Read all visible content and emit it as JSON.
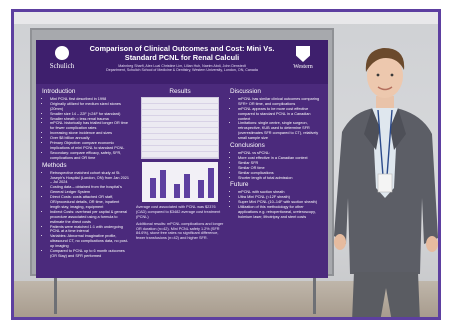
{
  "poster": {
    "title": "Comparison of Clinical Outcomes and Cost: Mini Vs. Standard PCNL for Renal Calculi",
    "authors": "Mahnbeg Sharfi, Alex Luai Christine Lim, Lilian Huh, Naeim Abdi, John Denstedt",
    "affiliation": "Department, Schulich School of Medicine & Dentistry, Western University, London, ON, Canada",
    "logo_left": "Schulich",
    "logo_right": "Western",
    "introduction": {
      "heading": "Introduction",
      "items": [
        "Mini PCNL first described in 1998",
        "Originally utilized for medium sized stones (20mm)",
        "Smaller size 14 – 22F (<24F for standard)",
        "Smaller sheath = less renal trauma",
        "mPCNL historically has trialled longer OR time for fewer complication rates",
        "Increasing stone incidence and sizes",
        "Over $8 billion annually",
        "Primary Objective: compare economic implications of mini PCNL to standard PCNL",
        "Secondary: compare efficacy, safety, SFR, complications and OR time"
      ]
    },
    "methods": {
      "heading": "Methods",
      "items": [
        "Retrospective matched cohort study at St. Joseph's Hospital (London, ON) from Jan 2021 – Jul 2024",
        "Costing data – obtained from the hospital's General Ledger System",
        "Direct Costs: costs attached OR staff, OR/procedural details, OR time, inpatient length stay, imaging, equipment",
        "Indirect Costs: overhead per capital & general procedure associated using a formula to estimate the direct costs",
        "Patients were matched 1:1 with undergoing PCNL at a time interval",
        "Variables: Abnormal imaginative profile, ultrasound CT, no complications data, no post-op imaging",
        "Compared to PCNL up to 6 month outcomes (OR Stay) and SFR performed"
      ]
    },
    "results": {
      "heading": "Results",
      "caption": "Average cost associated with PCNL was $2376 (CAD) compared to $3482 average cost treatment (PCNL)",
      "notes": "Additional results: mPCNL complications and longer OR duration (n=42). Mini PCNL safety 1.2% (SFR 84.6%), stone free rates no significant difference, fewer transfusions (n=42) and higher SFR."
    },
    "discussion": {
      "heading": "Discussion",
      "items": [
        "mPCNL has similar clinical outcomes comparing SFR+ OR time, and complications",
        "mPCNL appears to be more cost effective compared to standard PCNL in a Canadian context",
        "Limitations: single centre, single surgeon, retrospective, KUB used to determine SFR (overestimates SFR compared to CT), relatively small sample size"
      ]
    },
    "conclusions": {
      "heading": "Conclusions",
      "items": [
        "mPCNL vs sPCNL:",
        "More cost effective in a Canadian context",
        "Similar SFR",
        "Similar OR time",
        "Similar complications",
        "Shorter length of total admission"
      ]
    },
    "future": {
      "heading": "Future",
      "items": [
        "mPCNL with suction sheath",
        "Ultra Mini PCNL (<12F sheath)",
        "Super Mini PCNL (10–14F with suction sheath)",
        "Utilization of this methodology for other applications e.g. retroperitoneal, ureteroscopy, holmium laser, lithotripsy and stent costs"
      ]
    }
  },
  "colors": {
    "poster_bg": "#4b2a7c",
    "frame_border": "#5d3fa0",
    "suit": "#5c5e66",
    "shirt": "#dfe7ee"
  }
}
